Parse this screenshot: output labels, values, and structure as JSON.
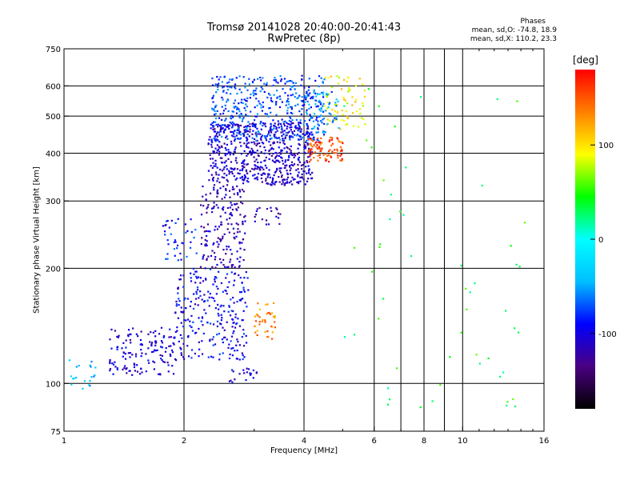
{
  "chart_data": {
    "type": "scatter",
    "title": "Tromsø 20141028 20:40:00-20:41:43",
    "subtitle": "RwPretec (8p)",
    "xlabel": "Frequency [MHz]",
    "ylabel": "Stationary phase Virtual Height [km]",
    "x_scale": "log",
    "y_scale": "log",
    "xlim": [
      1,
      16
    ],
    "ylim": [
      75,
      750
    ],
    "x_ticks": [
      1,
      2,
      4,
      6,
      8,
      10,
      16
    ],
    "x_minor_gridlines": [
      7,
      9
    ],
    "y_ticks": [
      75,
      100,
      200,
      300,
      400,
      500,
      600,
      750
    ],
    "grid": true,
    "colorbar": {
      "label": "[deg]",
      "range": [
        -180,
        180
      ],
      "ticks": [
        100,
        0,
        -100
      ],
      "colormap": [
        "#000000",
        "#4b0082",
        "#0000ff",
        "#00bfff",
        "#00ffff",
        "#00ff00",
        "#ffff00",
        "#ff8000",
        "#ff0000"
      ]
    },
    "phase_stats": {
      "heading": "Phases",
      "o_line": "mean, sd,O: -74.8, 18.9",
      "x_line": "mean, sd,X: 110.2, 23.3"
    },
    "clusters": [
      {
        "f": [
          1.0,
          1.2
        ],
        "h": [
          95,
          118
        ],
        "phase": -40,
        "n": 20
      },
      {
        "f": [
          1.3,
          1.9
        ],
        "h": [
          105,
          140
        ],
        "phase": -105,
        "n": 140
      },
      {
        "f": [
          1.9,
          2.9
        ],
        "h": [
          115,
          200
        ],
        "phase": -95,
        "n": 260
      },
      {
        "f": [
          1.75,
          2.15
        ],
        "h": [
          210,
          270
        ],
        "phase": -85,
        "n": 40
      },
      {
        "f": [
          2.2,
          2.85
        ],
        "h": [
          200,
          330
        ],
        "phase": -115,
        "n": 180
      },
      {
        "f": [
          2.6,
          3.1
        ],
        "h": [
          100,
          110
        ],
        "phase": -105,
        "n": 20
      },
      {
        "f": [
          2.3,
          4.2
        ],
        "h": [
          330,
          480
        ],
        "phase": -110,
        "n": 600
      },
      {
        "f": [
          2.35,
          4.5
        ],
        "h": [
          430,
          640
        ],
        "phase": -75,
        "n": 450
      },
      {
        "f": [
          3.0,
          3.4
        ],
        "h": [
          130,
          165
        ],
        "phase": 135,
        "n": 40
      },
      {
        "f": [
          4.1,
          5.0
        ],
        "h": [
          380,
          440
        ],
        "phase": 155,
        "n": 90
      },
      {
        "f": [
          4.5,
          5.7
        ],
        "h": [
          460,
          640
        ],
        "phase": 95,
        "n": 70
      },
      {
        "f": [
          4.0,
          4.9
        ],
        "h": [
          450,
          580
        ],
        "phase": -60,
        "n": 60
      },
      {
        "f": [
          3.0,
          3.5
        ],
        "h": [
          260,
          290
        ],
        "phase": -115,
        "n": 20
      },
      {
        "f": [
          5.0,
          14.5
        ],
        "h": [
          85,
          600
        ],
        "phase": 40,
        "n": 55
      }
    ]
  }
}
